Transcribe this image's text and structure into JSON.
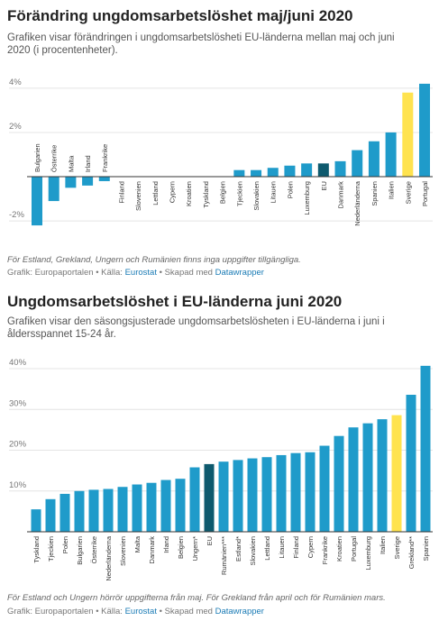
{
  "chart_data": [
    {
      "type": "bar",
      "title": "Förändring ungdomsarbetslöshet maj/juni 2020",
      "subtitle": "Grafiken visar förändringen i ungdomsarbetslösheti EU-länderna mellan maj och juni 2020 (i procentenheter).",
      "categories": [
        "Bulgarien",
        "Österrike",
        "Malta",
        "Irland",
        "Frankrike",
        "Finland",
        "Slovenien",
        "Lettland",
        "Cypern",
        "Kroatien",
        "Tyskland",
        "Belgien",
        "Tjeckien",
        "Slovakien",
        "Litauen",
        "Polen",
        "Luxemburg",
        "EU",
        "Danmark",
        "Nederländerna",
        "Spanien",
        "Italien",
        "Sverige",
        "Portugal"
      ],
      "values": [
        -2.2,
        -1.1,
        -0.5,
        -0.4,
        -0.2,
        0,
        0,
        0,
        0,
        0,
        0,
        0,
        0.3,
        0.3,
        0.4,
        0.5,
        0.6,
        0.6,
        0.7,
        1.2,
        1.6,
        2.0,
        3.8,
        4.2
      ],
      "colors": [
        "#1f9bca",
        "#1f9bca",
        "#1f9bca",
        "#1f9bca",
        "#1f9bca",
        "#1f9bca",
        "#1f9bca",
        "#1f9bca",
        "#1f9bca",
        "#1f9bca",
        "#1f9bca",
        "#1f9bca",
        "#1f9bca",
        "#1f9bca",
        "#1f9bca",
        "#1f9bca",
        "#1f9bca",
        "#0e5a6e",
        "#1f9bca",
        "#1f9bca",
        "#1f9bca",
        "#1f9bca",
        "#ffe34f",
        "#1f9bca"
      ],
      "ylim": [
        -2.4,
        4.4
      ],
      "yticks": [
        {
          "value": 4,
          "label": "4%"
        },
        {
          "value": 2,
          "label": "2%"
        },
        {
          "value": -2,
          "label": "-2%"
        }
      ],
      "grid": true,
      "note": "För Estland, Grekland, Ungern och Rumänien finns inga uppgifter tillgängliga.",
      "source": [
        "Grafik: Europaportalen • Källa: ",
        "Eurostat",
        " • Skapad med ",
        "Datawrapper"
      ]
    },
    {
      "type": "bar",
      "title": "Ungdomsarbetslöshet i EU-länderna juni 2020",
      "subtitle": "Grafiken visar den säsongsjusterade ungdomsarbetslösheten i EU-länderna i juni i åldersspannet 15-24 år.",
      "categories": [
        "Tyskland",
        "Tjeckien",
        "Polen",
        "Bulgarien",
        "Österrike",
        "Nederländerna",
        "Slovenien",
        "Malta",
        "Danmark",
        "Irland",
        "Belgien",
        "Ungern*",
        "EU",
        "Rumänien***",
        "Estland*",
        "Slovakien",
        "Lettland",
        "Litauen",
        "Finland",
        "Cypern",
        "Frankrike",
        "Kroatien",
        "Portugal",
        "Luxemburg",
        "Italien",
        "Sverige",
        "Grekland**",
        "Spanien"
      ],
      "values": [
        5.5,
        8.0,
        9.3,
        10.0,
        10.3,
        10.5,
        11.0,
        11.6,
        12.0,
        12.7,
        13.0,
        15.8,
        16.6,
        17.2,
        17.6,
        18.0,
        18.3,
        18.8,
        19.3,
        19.5,
        21.1,
        23.5,
        25.6,
        26.6,
        27.6,
        28.6,
        33.6,
        40.7
      ],
      "colors": [
        "#1f9bca",
        "#1f9bca",
        "#1f9bca",
        "#1f9bca",
        "#1f9bca",
        "#1f9bca",
        "#1f9bca",
        "#1f9bca",
        "#1f9bca",
        "#1f9bca",
        "#1f9bca",
        "#1f9bca",
        "#0e5a6e",
        "#1f9bca",
        "#1f9bca",
        "#1f9bca",
        "#1f9bca",
        "#1f9bca",
        "#1f9bca",
        "#1f9bca",
        "#1f9bca",
        "#1f9bca",
        "#1f9bca",
        "#1f9bca",
        "#1f9bca",
        "#ffe34f",
        "#1f9bca",
        "#1f9bca"
      ],
      "ylim": [
        0,
        42
      ],
      "yticks": [
        {
          "value": 40,
          "label": "40%"
        },
        {
          "value": 30,
          "label": "30%"
        },
        {
          "value": 20,
          "label": "20%"
        },
        {
          "value": 10,
          "label": "10%"
        }
      ],
      "grid": true,
      "note": "För Estland och Ungern hörrör uppgifterna från maj. För Grekland från april och för Rumänien mars.",
      "source": [
        "Grafik: Europaportalen • Källa: ",
        "Eurostat",
        " • Skapad med ",
        "Datawrapper"
      ]
    }
  ]
}
